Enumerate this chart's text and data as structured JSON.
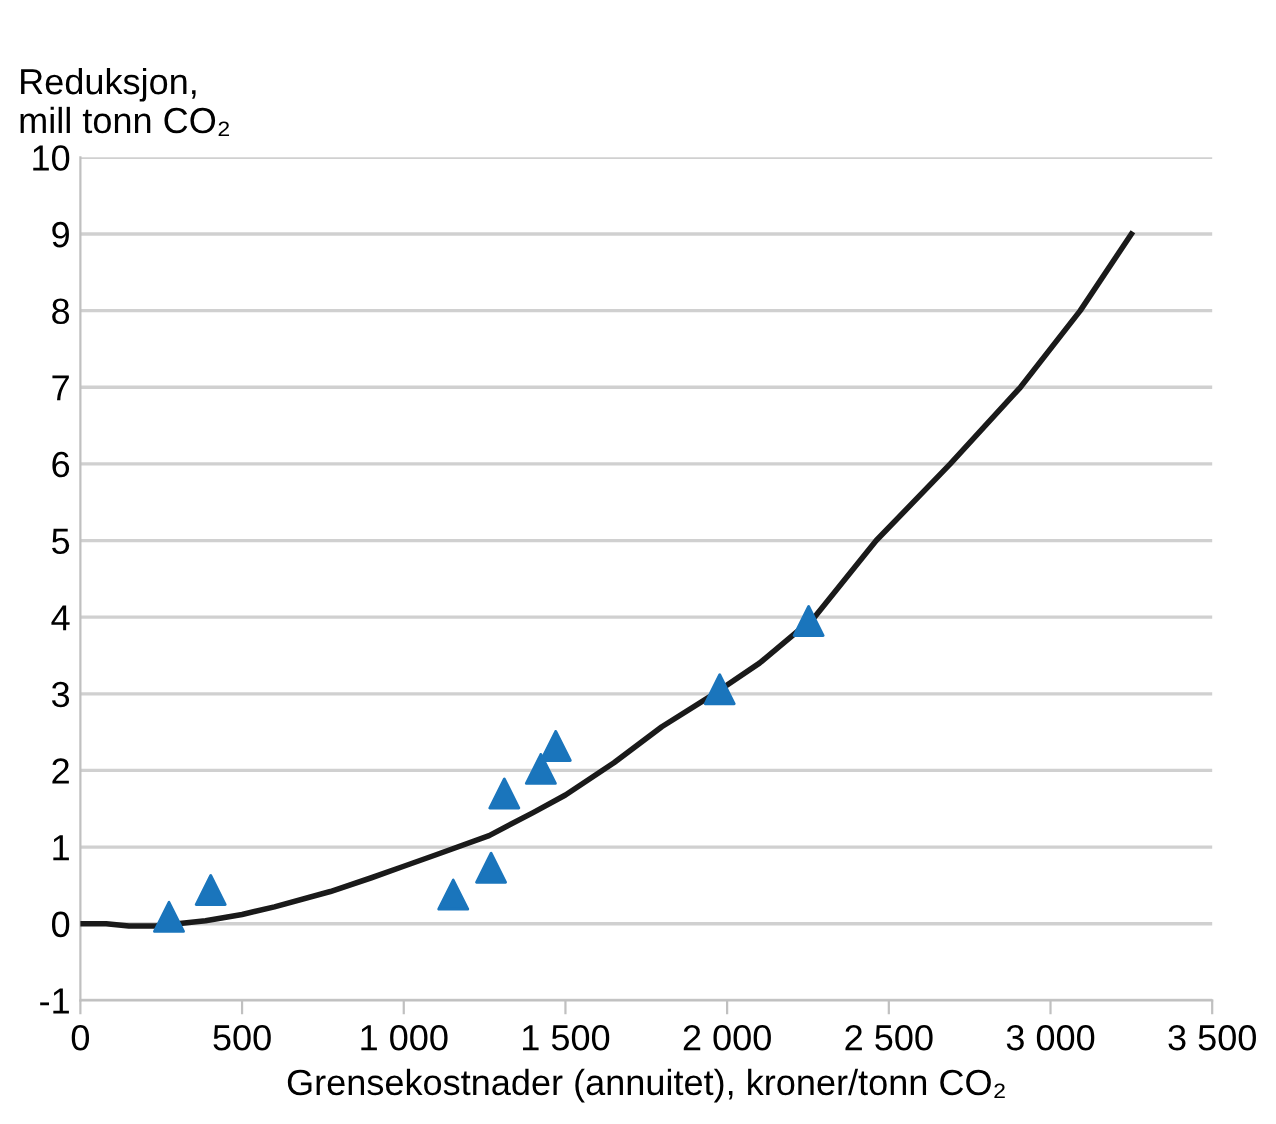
{
  "chart_data": {
    "type": "line",
    "ylabel": "Reduksjon,\nmill tonn CO₂",
    "xlabel": "Grensekostnader (annuitet), kroner/tonn CO₂",
    "series": [
      {
        "color": "#1a1a1a",
        "marker": "none",
        "x": [
          0,
          80,
          150,
          233,
          300,
          387,
          500,
          600,
          773,
          900,
          1000,
          1100,
          1264,
          1400,
          1500,
          1650,
          1798,
          1960,
          2100,
          2270,
          2461,
          2690,
          2907,
          3092,
          3250
        ],
        "values": [
          0,
          0,
          -0.03,
          -0.03,
          0,
          0.04,
          0.12,
          0.22,
          0.42,
          0.6,
          0.75,
          0.9,
          1.15,
          1.45,
          1.68,
          2.1,
          2.57,
          3.0,
          3.4,
          4.0,
          5.0,
          6.0,
          7.0,
          8.0,
          9.0
        ]
      },
      {
        "type": "scatter",
        "color": "#1a75bc",
        "marker": "triangle",
        "x": [
          274,
          403,
          1153,
          1270,
          1311,
          1424,
          1470,
          1977,
          2252
        ],
        "values": [
          0.09,
          0.44,
          0.38,
          0.73,
          1.7,
          2.02,
          2.32,
          3.06,
          3.95
        ]
      }
    ],
    "xlim": [
      0,
      3500
    ],
    "xticks": [
      0,
      500,
      {
        "value": 1000,
        "label": "1 000"
      },
      {
        "value": 1500,
        "label": "1 500"
      },
      {
        "value": 2000,
        "label": "2 000"
      },
      {
        "value": 2500,
        "label": "2 500"
      },
      {
        "value": 3000,
        "label": "3 000"
      },
      {
        "value": 3500,
        "label": "3 500"
      }
    ],
    "ylim": [
      -1,
      10
    ],
    "yticks": [
      -1,
      0,
      1,
      2,
      3,
      4,
      5,
      6,
      7,
      8,
      9,
      10
    ],
    "grid": "y",
    "legend": false
  }
}
